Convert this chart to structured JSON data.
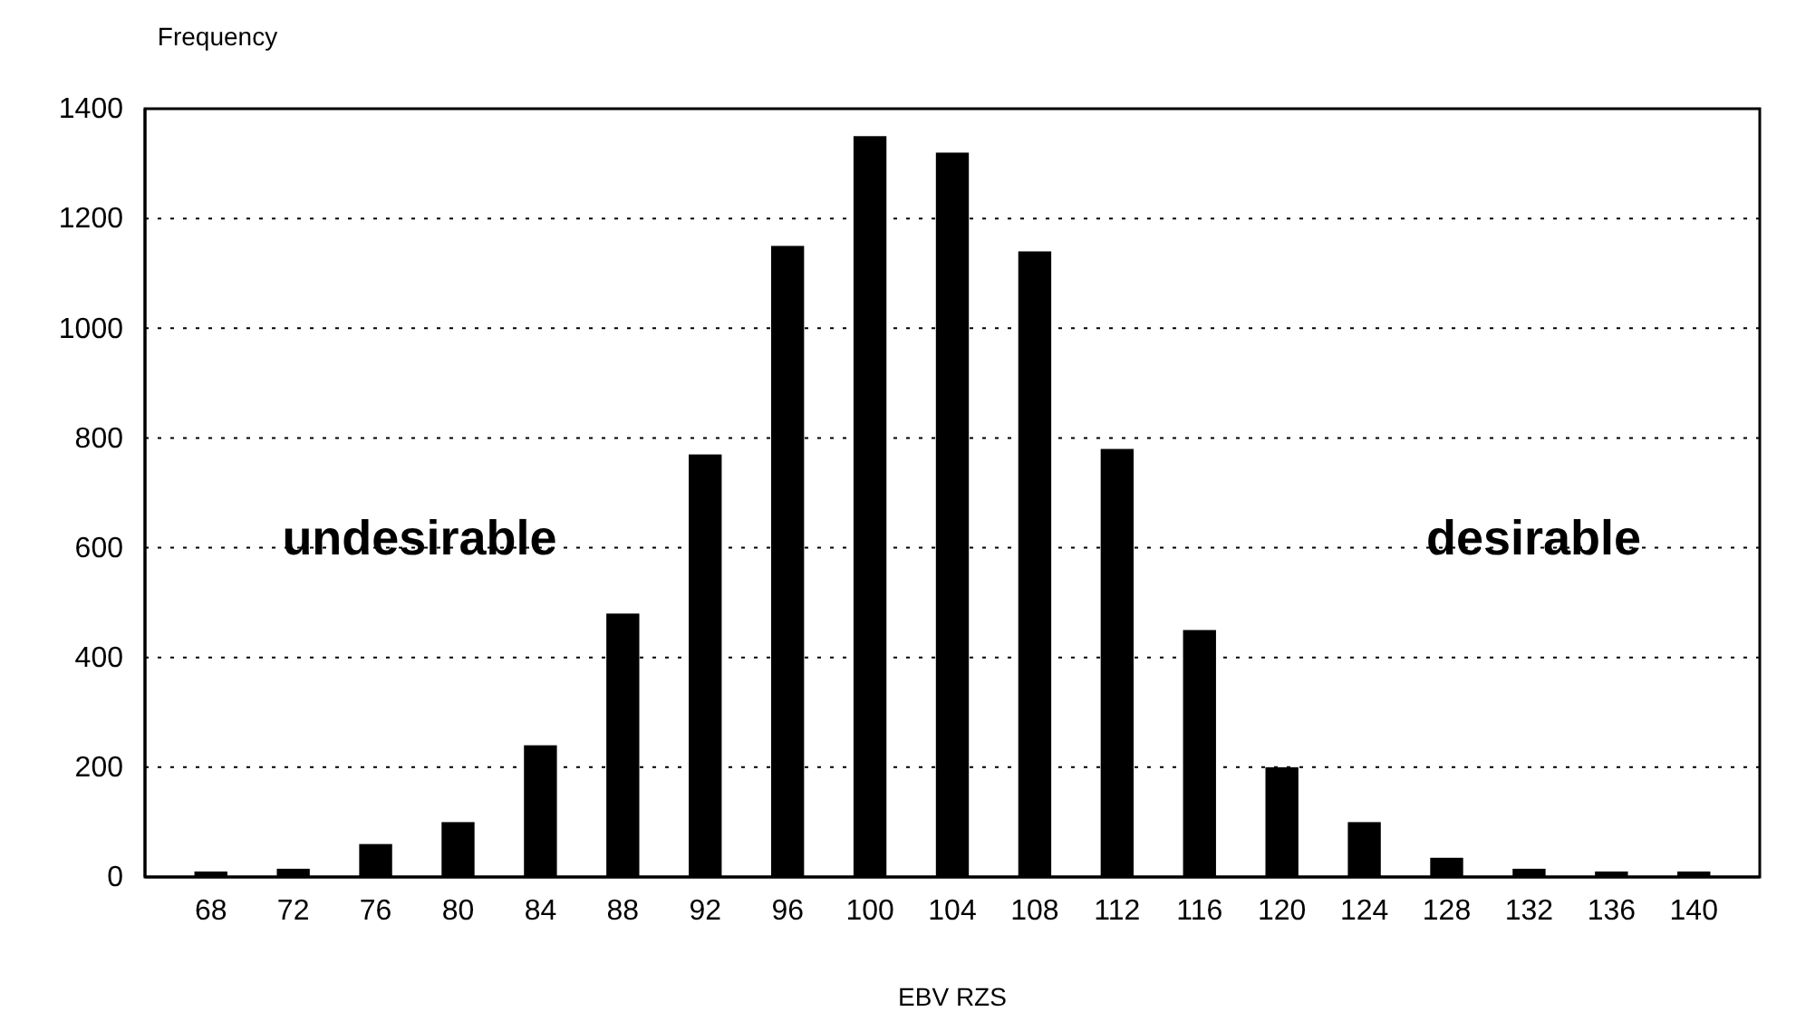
{
  "chart_data": {
    "type": "bar",
    "ylabel": "Frequency",
    "xlabel": "EBV RZS",
    "categories": [
      "68",
      "72",
      "76",
      "80",
      "84",
      "88",
      "92",
      "96",
      "100",
      "104",
      "108",
      "112",
      "116",
      "120",
      "124",
      "128",
      "132",
      "136",
      "140"
    ],
    "values": [
      10,
      15,
      60,
      100,
      240,
      480,
      770,
      1150,
      1350,
      1320,
      1140,
      780,
      450,
      200,
      100,
      35,
      15,
      10,
      10
    ],
    "color": "#000000",
    "ylim": [
      0,
      1400
    ],
    "yticks": [
      0,
      200,
      400,
      600,
      800,
      1000,
      1200,
      1400
    ],
    "grid": "y",
    "annotations": [
      "undesirable",
      "desirable"
    ]
  }
}
